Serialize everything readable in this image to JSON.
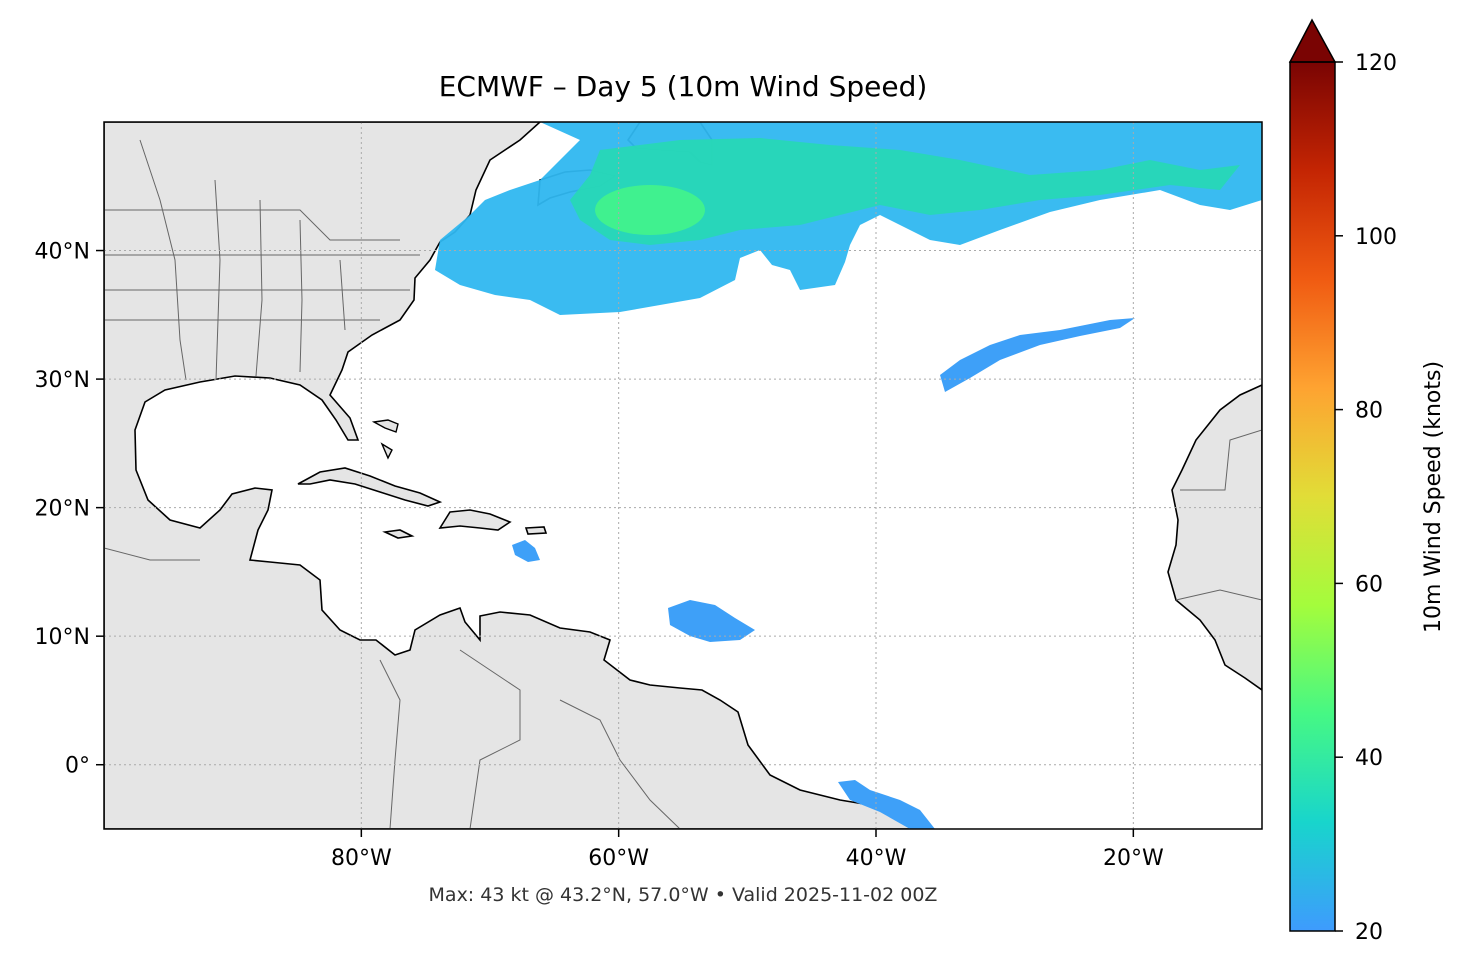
{
  "title": "ECMWF – Day 5 (10m Wind Speed)",
  "footnote": "Max: 43 kt @ 43.2°N, 57.0°W • Valid 2025-11-02 00Z",
  "map": {
    "lon_range": [
      -100,
      -10
    ],
    "lat_range": [
      -5,
      50
    ],
    "lon_ticks": [
      {
        "value": -80,
        "label": "80°W"
      },
      {
        "value": -60,
        "label": "60°W"
      },
      {
        "value": -40,
        "label": "40°W"
      },
      {
        "value": -20,
        "label": "20°W"
      }
    ],
    "lat_ticks": [
      {
        "value": 40,
        "label": "40°N"
      },
      {
        "value": 30,
        "label": "30°N"
      },
      {
        "value": 20,
        "label": "20°N"
      },
      {
        "value": 10,
        "label": "10°N"
      },
      {
        "value": 0,
        "label": "0°"
      }
    ],
    "gridlines": "dotted",
    "land_color": "#e5e5e5",
    "coastline_color": "#000000",
    "border_color": "#666666"
  },
  "colorbar": {
    "label": "10m Wind Speed (knots)",
    "range": [
      20,
      120
    ],
    "extend": "max",
    "ticks": [
      "20",
      "40",
      "60",
      "80",
      "100",
      "120"
    ],
    "colormap": "turbo",
    "colors": [
      "#3e9bfe",
      "#18d5cc",
      "#46f884",
      "#a4fc3c",
      "#e1dd37",
      "#fea331",
      "#f05b12",
      "#c42503",
      "#7a0403"
    ]
  },
  "chart_data": {
    "type": "heatmap",
    "title": "ECMWF – Day 5 (10m Wind Speed)",
    "variable": "10m Wind Speed (knots)",
    "max": {
      "value_kt": 43,
      "lat": 43.2,
      "lon": -57.0
    },
    "valid": "2025-11-02 00Z",
    "regions": [
      {
        "lat": 43.2,
        "lon": -57.0,
        "kt": 43
      },
      {
        "lat": 43.5,
        "lon": -47,
        "kt": 36
      },
      {
        "lat": 45.5,
        "lon": -30,
        "kt": 34
      },
      {
        "lat": 47,
        "lon": -20,
        "kt": 28
      },
      {
        "lat": 38.5,
        "lon": -66,
        "kt": 26
      },
      {
        "lat": 31.5,
        "lon": -30,
        "kt": 22
      },
      {
        "lat": 11,
        "lon": -54,
        "kt": 21
      },
      {
        "lat": 17,
        "lon": -65,
        "kt": 21
      },
      {
        "lat": -3,
        "lon": -38,
        "kt": 21
      }
    ]
  }
}
